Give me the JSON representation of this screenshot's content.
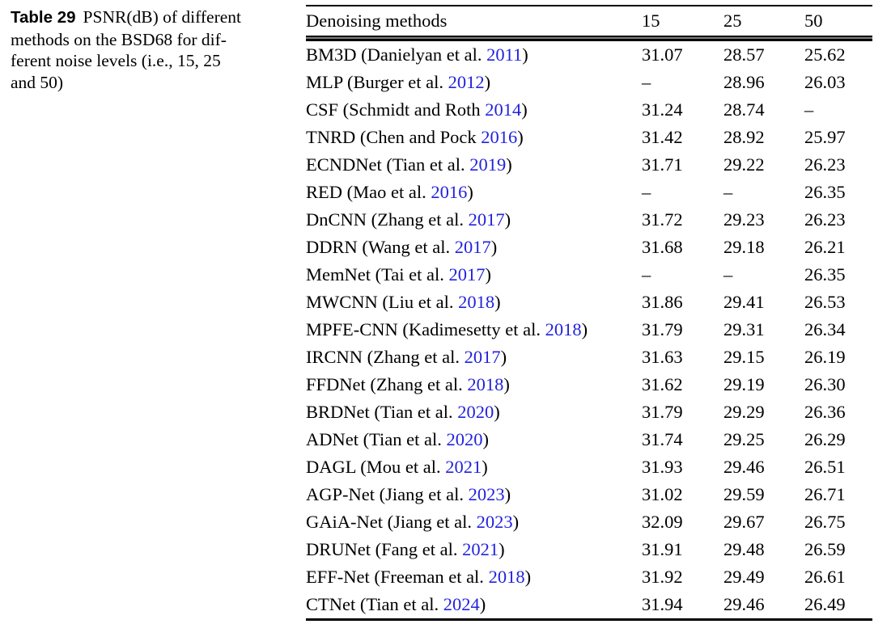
{
  "caption": {
    "label": "Table 29",
    "lines": [
      "PSNR(dB) of different",
      "methods on the BSD68 for dif-",
      "ferent noise levels (i.e., 15, 25",
      "and 50)"
    ]
  },
  "table": {
    "header": {
      "method": "Denoising methods",
      "cols": [
        "15",
        "25",
        "50"
      ]
    },
    "rows": [
      {
        "pre": "BM3D (Danielyan et al. ",
        "year": "2011",
        "post": ")",
        "v15": "31.07",
        "v25": "28.57",
        "v50": "25.62"
      },
      {
        "pre": "MLP (Burger et al. ",
        "year": "2012",
        "post": ")",
        "v15": "–",
        "v25": "28.96",
        "v50": "26.03"
      },
      {
        "pre": "CSF (Schmidt and Roth ",
        "year": "2014",
        "post": ")",
        "v15": "31.24",
        "v25": "28.74",
        "v50": "–"
      },
      {
        "pre": "TNRD (Chen and Pock ",
        "year": "2016",
        "post": ")",
        "v15": "31.42",
        "v25": "28.92",
        "v50": "25.97"
      },
      {
        "pre": "ECNDNet (Tian et al. ",
        "year": "2019",
        "post": ")",
        "v15": "31.71",
        "v25": "29.22",
        "v50": "26.23"
      },
      {
        "pre": "RED (Mao et al. ",
        "year": "2016",
        "post": ")",
        "v15": "–",
        "v25": "–",
        "v50": "26.35"
      },
      {
        "pre": "DnCNN (Zhang et al. ",
        "year": "2017",
        "post": ")",
        "v15": "31.72",
        "v25": "29.23",
        "v50": "26.23"
      },
      {
        "pre": "DDRN (Wang et al. ",
        "year": "2017",
        "post": ")",
        "v15": "31.68",
        "v25": "29.18",
        "v50": "26.21"
      },
      {
        "pre": "MemNet (Tai et al. ",
        "year": "2017",
        "post": ")",
        "v15": "–",
        "v25": "–",
        "v50": "26.35"
      },
      {
        "pre": "MWCNN (Liu et al. ",
        "year": "2018",
        "post": ")",
        "v15": "31.86",
        "v25": "29.41",
        "v50": "26.53"
      },
      {
        "pre": "MPFE-CNN (Kadimesetty et al. ",
        "year": "2018",
        "post": ")",
        "v15": "31.79",
        "v25": "29.31",
        "v50": "26.34"
      },
      {
        "pre": "IRCNN (Zhang et al. ",
        "year": "2017",
        "post": ")",
        "v15": "31.63",
        "v25": "29.15",
        "v50": "26.19"
      },
      {
        "pre": "FFDNet (Zhang et al. ",
        "year": "2018",
        "post": ")",
        "v15": "31.62",
        "v25": "29.19",
        "v50": "26.30"
      },
      {
        "pre": "BRDNet (Tian et al. ",
        "year": "2020",
        "post": ")",
        "v15": "31.79",
        "v25": "29.29",
        "v50": "26.36"
      },
      {
        "pre": "ADNet (Tian et al. ",
        "year": "2020",
        "post": ")",
        "v15": "31.74",
        "v25": "29.25",
        "v50": "26.29"
      },
      {
        "pre": "DAGL (Mou et al. ",
        "year": "2021",
        "post": ")",
        "v15": "31.93",
        "v25": "29.46",
        "v50": "26.51"
      },
      {
        "pre": "AGP-Net (Jiang et al. ",
        "year": "2023",
        "post": ")",
        "v15": "31.02",
        "v25": "29.59",
        "v50": "26.71"
      },
      {
        "pre": "GAiA-Net (Jiang et al. ",
        "year": "2023",
        "post": ")",
        "v15": "32.09",
        "v25": "29.67",
        "v50": "26.75"
      },
      {
        "pre": "DRUNet (Fang et al. ",
        "year": "2021",
        "post": ")",
        "v15": "31.91",
        "v25": "29.48",
        "v50": "26.59"
      },
      {
        "pre": "EFF-Net (Freeman et al. ",
        "year": "2018",
        "post": ")",
        "v15": "31.92",
        "v25": "29.49",
        "v50": "26.61"
      },
      {
        "pre": "CTNet (Tian et al. ",
        "year": "2024",
        "post": ")",
        "v15": "31.94",
        "v25": "29.46",
        "v50": "26.49"
      }
    ]
  },
  "colors": {
    "citation_blue": "#2222DE",
    "text_black": "#000000"
  }
}
